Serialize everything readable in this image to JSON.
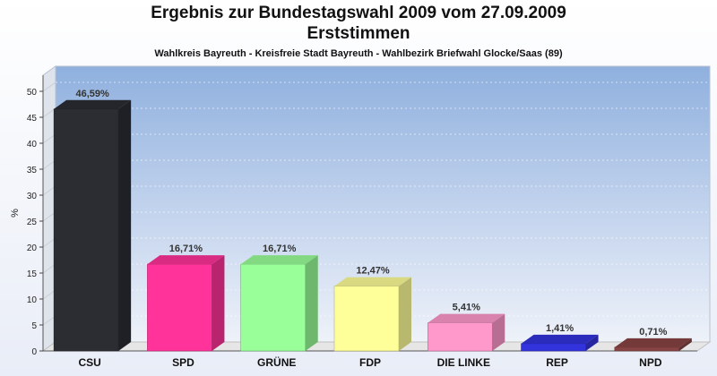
{
  "chart_data": {
    "type": "bar",
    "title": "Ergebnis zur Bundestagswahl 2009 vom 27.09.2009",
    "subtitle": "Erststimmen",
    "caption": "Wahlkreis Bayreuth - Kreisfreie Stadt Bayreuth - Wahlbezirk Briefwahl Glocke/Saas (89)",
    "ylabel": "%",
    "ylim": [
      0,
      50
    ],
    "yticks": [
      "0",
      "5",
      "10",
      "15",
      "20",
      "25",
      "30",
      "35",
      "40",
      "45",
      "50"
    ],
    "categories": [
      "CSU",
      "SPD",
      "GRÜNE",
      "FDP",
      "DIE LINKE",
      "REP",
      "NPD"
    ],
    "values": [
      46.59,
      16.71,
      16.71,
      12.47,
      5.41,
      1.41,
      0.71
    ],
    "data_labels": [
      "46,59%",
      "16,71%",
      "16,71%",
      "12,47%",
      "5,41%",
      "1,41%",
      "0,71%"
    ],
    "colors": [
      "#2b2d33",
      "#ff3399",
      "#99ff99",
      "#ffff99",
      "#ff99cc",
      "#3333dd",
      "#884444"
    ],
    "grid": true,
    "legend": "none"
  }
}
